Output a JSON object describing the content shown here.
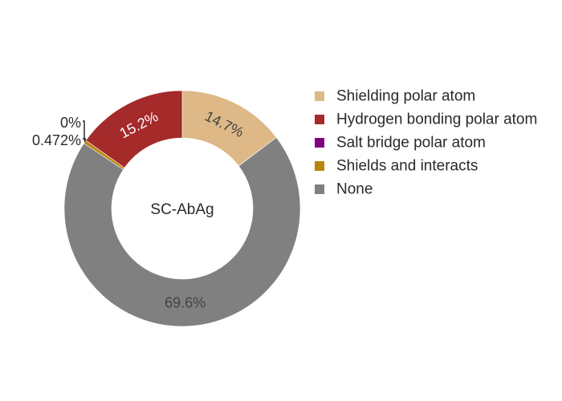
{
  "chart_data": {
    "type": "pie",
    "hole": true,
    "center_text": "SC-AbAg",
    "direction": "clockwise",
    "start": "top",
    "legend_position": "right",
    "slices": [
      {
        "name": "Shielding polar atom",
        "value": 14.7,
        "label": "14.7%",
        "color": "#deb887",
        "label_color": "#444444",
        "label_inside": true
      },
      {
        "name": "None",
        "value": 69.6,
        "label": "69.6%",
        "color": "#808080",
        "label_color": "#444444",
        "label_inside": true
      },
      {
        "name": "Shields and interacts",
        "value": 0.472,
        "label": "0.472%",
        "color": "#b8860b",
        "label_color": "#2a2a2a",
        "label_inside": false
      },
      {
        "name": "Salt bridge polar atom",
        "value": 0,
        "label": "0%",
        "color": "#800080",
        "label_color": "#2a2a2a",
        "label_inside": false
      },
      {
        "name": "Hydrogen bonding polar atom",
        "value": 15.2,
        "label": "15.2%",
        "color": "#a52a2a",
        "label_color": "#ffffff",
        "label_inside": true
      }
    ],
    "legend": [
      {
        "name": "Shielding polar atom",
        "color": "#deb887"
      },
      {
        "name": "Hydrogen bonding polar atom",
        "color": "#a52a2a"
      },
      {
        "name": "Salt bridge polar atom",
        "color": "#800080"
      },
      {
        "name": "Shields and interacts",
        "color": "#b8860b"
      },
      {
        "name": "None",
        "color": "#808080"
      }
    ]
  }
}
